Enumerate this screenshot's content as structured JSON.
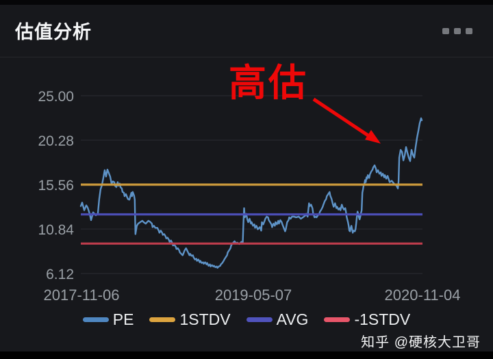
{
  "header": {
    "title": "估值分析"
  },
  "chart_data": {
    "type": "line",
    "title": "估值分析",
    "ylim": [
      6.12,
      25.0
    ],
    "y_ticks": [
      25.0,
      20.28,
      15.56,
      10.84,
      6.12
    ],
    "x_ticks": [
      {
        "label": "2017-11-06",
        "pos": 0.002
      },
      {
        "label": "2019-05-07",
        "pos": 0.505
      },
      {
        "label": "2020-11-04",
        "pos": 1.0
      }
    ],
    "grid": true,
    "legend_position": "bottom",
    "series": [
      {
        "name": "PE",
        "color": "#5e93c7",
        "points": [
          [
            0.0,
            13.28
          ],
          [
            0.004,
            13.66
          ],
          [
            0.01,
            12.84
          ],
          [
            0.016,
            13.36
          ],
          [
            0.02,
            13.13
          ],
          [
            0.026,
            12.46
          ],
          [
            0.03,
            11.79
          ],
          [
            0.036,
            12.61
          ],
          [
            0.044,
            12.31
          ],
          [
            0.05,
            12.46
          ],
          [
            0.054,
            14.03
          ],
          [
            0.058,
            15.07
          ],
          [
            0.062,
            15.52
          ],
          [
            0.066,
            16.27
          ],
          [
            0.07,
            17.09
          ],
          [
            0.074,
            16.42
          ],
          [
            0.078,
            17.16
          ],
          [
            0.082,
            16.79
          ],
          [
            0.086,
            16.42
          ],
          [
            0.09,
            15.67
          ],
          [
            0.094,
            15.9
          ],
          [
            0.098,
            15.82
          ],
          [
            0.1,
            15.45
          ],
          [
            0.104,
            15.3
          ],
          [
            0.108,
            15.82
          ],
          [
            0.11,
            15.45
          ],
          [
            0.114,
            15.67
          ],
          [
            0.116,
            15.3
          ],
          [
            0.12,
            15.15
          ],
          [
            0.122,
            14.78
          ],
          [
            0.126,
            14.7
          ],
          [
            0.128,
            14.33
          ],
          [
            0.132,
            14.55
          ],
          [
            0.136,
            14.18
          ],
          [
            0.138,
            14.03
          ],
          [
            0.142,
            13.96
          ],
          [
            0.144,
            14.18
          ],
          [
            0.148,
            14.7
          ],
          [
            0.15,
            14.33
          ],
          [
            0.152,
            14.78
          ],
          [
            0.156,
            14.4
          ],
          [
            0.158,
            13.96
          ],
          [
            0.16,
            10.3
          ],
          [
            0.164,
            11.19
          ],
          [
            0.168,
            11.42
          ],
          [
            0.174,
            11.57
          ],
          [
            0.18,
            11.72
          ],
          [
            0.184,
            11.57
          ],
          [
            0.19,
            11.42
          ],
          [
            0.194,
            11.57
          ],
          [
            0.198,
            11.72
          ],
          [
            0.204,
            11.57
          ],
          [
            0.208,
            11.42
          ],
          [
            0.21,
            11.04
          ],
          [
            0.214,
            11.19
          ],
          [
            0.218,
            10.97
          ],
          [
            0.224,
            10.97
          ],
          [
            0.228,
            10.67
          ],
          [
            0.23,
            10.45
          ],
          [
            0.234,
            10.67
          ],
          [
            0.238,
            10.45
          ],
          [
            0.24,
            10.22
          ],
          [
            0.244,
            10.3
          ],
          [
            0.248,
            10.07
          ],
          [
            0.25,
            9.85
          ],
          [
            0.254,
            9.93
          ],
          [
            0.258,
            9.7
          ],
          [
            0.26,
            9.48
          ],
          [
            0.264,
            9.63
          ],
          [
            0.268,
            9.33
          ],
          [
            0.27,
            9.1
          ],
          [
            0.274,
            9.18
          ],
          [
            0.278,
            8.96
          ],
          [
            0.28,
            8.73
          ],
          [
            0.284,
            8.81
          ],
          [
            0.288,
            8.58
          ],
          [
            0.29,
            8.36
          ],
          [
            0.294,
            8.21
          ],
          [
            0.298,
            8.06
          ],
          [
            0.3,
            8.21
          ],
          [
            0.304,
            8.58
          ],
          [
            0.308,
            8.81
          ],
          [
            0.31,
            8.66
          ],
          [
            0.314,
            8.36
          ],
          [
            0.318,
            8.06
          ],
          [
            0.32,
            8.21
          ],
          [
            0.324,
            7.99
          ],
          [
            0.328,
            8.06
          ],
          [
            0.33,
            7.84
          ],
          [
            0.334,
            7.61
          ],
          [
            0.338,
            7.69
          ],
          [
            0.34,
            7.46
          ],
          [
            0.344,
            7.61
          ],
          [
            0.348,
            7.31
          ],
          [
            0.35,
            7.46
          ],
          [
            0.354,
            7.24
          ],
          [
            0.358,
            7.31
          ],
          [
            0.36,
            7.16
          ],
          [
            0.364,
            7.31
          ],
          [
            0.368,
            7.09
          ],
          [
            0.37,
            7.24
          ],
          [
            0.374,
            6.94
          ],
          [
            0.378,
            7.09
          ],
          [
            0.38,
            6.87
          ],
          [
            0.384,
            7.01
          ],
          [
            0.388,
            6.87
          ],
          [
            0.39,
            6.94
          ],
          [
            0.394,
            6.79
          ],
          [
            0.398,
            6.87
          ],
          [
            0.4,
            6.72
          ],
          [
            0.404,
            6.87
          ],
          [
            0.408,
            6.94
          ],
          [
            0.41,
            7.09
          ],
          [
            0.414,
            7.24
          ],
          [
            0.418,
            7.46
          ],
          [
            0.42,
            7.61
          ],
          [
            0.424,
            7.84
          ],
          [
            0.428,
            8.06
          ],
          [
            0.43,
            8.36
          ],
          [
            0.434,
            8.58
          ],
          [
            0.438,
            8.81
          ],
          [
            0.44,
            9.1
          ],
          [
            0.444,
            9.33
          ],
          [
            0.45,
            9.55
          ],
          [
            0.454,
            9.33
          ],
          [
            0.458,
            9.4
          ],
          [
            0.464,
            9.25
          ],
          [
            0.47,
            9.48
          ],
          [
            0.474,
            9.33
          ],
          [
            0.476,
            11.42
          ],
          [
            0.478,
            13.06
          ],
          [
            0.48,
            12.09
          ],
          [
            0.484,
            12.46
          ],
          [
            0.488,
            11.79
          ],
          [
            0.49,
            11.57
          ],
          [
            0.494,
            11.94
          ],
          [
            0.498,
            11.42
          ],
          [
            0.5,
            11.57
          ],
          [
            0.504,
            11.19
          ],
          [
            0.508,
            11.34
          ],
          [
            0.51,
            10.97
          ],
          [
            0.514,
            11.19
          ],
          [
            0.518,
            10.82
          ],
          [
            0.524,
            11.04
          ],
          [
            0.528,
            10.67
          ],
          [
            0.53,
            11.57
          ],
          [
            0.534,
            11.34
          ],
          [
            0.538,
            11.72
          ],
          [
            0.54,
            11.94
          ],
          [
            0.544,
            12.16
          ],
          [
            0.548,
            12.09
          ],
          [
            0.55,
            11.79
          ],
          [
            0.554,
            11.57
          ],
          [
            0.558,
            11.34
          ],
          [
            0.56,
            11.04
          ],
          [
            0.564,
            11.42
          ],
          [
            0.568,
            11.19
          ],
          [
            0.57,
            11.57
          ],
          [
            0.574,
            11.34
          ],
          [
            0.578,
            11.72
          ],
          [
            0.58,
            11.42
          ],
          [
            0.584,
            11.79
          ],
          [
            0.588,
            11.57
          ],
          [
            0.59,
            11.34
          ],
          [
            0.594,
            10.97
          ],
          [
            0.598,
            10.6
          ],
          [
            0.6,
            10.82
          ],
          [
            0.604,
            11.57
          ],
          [
            0.608,
            11.79
          ],
          [
            0.61,
            12.09
          ],
          [
            0.614,
            11.94
          ],
          [
            0.618,
            12.16
          ],
          [
            0.624,
            12.16
          ],
          [
            0.63,
            12.09
          ],
          [
            0.638,
            12.16
          ],
          [
            0.644,
            11.94
          ],
          [
            0.65,
            12.09
          ],
          [
            0.658,
            12.31
          ],
          [
            0.66,
            12.46
          ],
          [
            0.664,
            12.16
          ],
          [
            0.668,
            13.58
          ],
          [
            0.67,
            13.28
          ],
          [
            0.674,
            13.43
          ],
          [
            0.678,
            13.06
          ],
          [
            0.68,
            12.54
          ],
          [
            0.684,
            12.09
          ],
          [
            0.688,
            12.16
          ],
          [
            0.69,
            12.09
          ],
          [
            0.694,
            12.31
          ],
          [
            0.698,
            12.46
          ],
          [
            0.7,
            12.69
          ],
          [
            0.704,
            12.91
          ],
          [
            0.708,
            13.21
          ],
          [
            0.71,
            13.43
          ],
          [
            0.714,
            13.81
          ],
          [
            0.718,
            14.03
          ],
          [
            0.72,
            14.33
          ],
          [
            0.724,
            14.55
          ],
          [
            0.728,
            14.78
          ],
          [
            0.73,
            14.4
          ],
          [
            0.734,
            14.03
          ],
          [
            0.738,
            13.43
          ],
          [
            0.74,
            13.21
          ],
          [
            0.744,
            13.58
          ],
          [
            0.748,
            13.06
          ],
          [
            0.75,
            13.21
          ],
          [
            0.754,
            12.91
          ],
          [
            0.758,
            13.06
          ],
          [
            0.76,
            12.84
          ],
          [
            0.764,
            13.43
          ],
          [
            0.766,
            13.21
          ],
          [
            0.77,
            12.91
          ],
          [
            0.774,
            13.06
          ],
          [
            0.776,
            12.69
          ],
          [
            0.778,
            12.16
          ],
          [
            0.782,
            11.57
          ],
          [
            0.784,
            11.19
          ],
          [
            0.786,
            10.67
          ],
          [
            0.788,
            10.6
          ],
          [
            0.79,
            10.97
          ],
          [
            0.792,
            11.19
          ],
          [
            0.794,
            10.82
          ],
          [
            0.796,
            10.45
          ],
          [
            0.798,
            10.67
          ],
          [
            0.802,
            10.6
          ],
          [
            0.804,
            10.82
          ],
          [
            0.806,
            11.42
          ],
          [
            0.808,
            12.16
          ],
          [
            0.81,
            12.69
          ],
          [
            0.812,
            12.46
          ],
          [
            0.814,
            12.09
          ],
          [
            0.816,
            11.87
          ],
          [
            0.818,
            12.16
          ],
          [
            0.82,
            12.54
          ],
          [
            0.822,
            12.84
          ],
          [
            0.824,
            14.7
          ],
          [
            0.826,
            15.07
          ],
          [
            0.828,
            15.52
          ],
          [
            0.83,
            15.67
          ],
          [
            0.832,
            16.04
          ],
          [
            0.834,
            15.82
          ],
          [
            0.836,
            16.34
          ],
          [
            0.838,
            16.19
          ],
          [
            0.84,
            16.57
          ],
          [
            0.844,
            16.27
          ],
          [
            0.846,
            16.64
          ],
          [
            0.85,
            16.94
          ],
          [
            0.854,
            17.16
          ],
          [
            0.856,
            17.39
          ],
          [
            0.86,
            17.61
          ],
          [
            0.864,
            17.24
          ],
          [
            0.866,
            16.87
          ],
          [
            0.87,
            17.09
          ],
          [
            0.874,
            16.72
          ],
          [
            0.878,
            16.87
          ],
          [
            0.88,
            16.49
          ],
          [
            0.884,
            16.72
          ],
          [
            0.888,
            16.34
          ],
          [
            0.89,
            16.57
          ],
          [
            0.894,
            16.19
          ],
          [
            0.898,
            16.49
          ],
          [
            0.904,
            15.82
          ],
          [
            0.91,
            15.97
          ],
          [
            0.918,
            15.6
          ],
          [
            0.924,
            15.45
          ],
          [
            0.928,
            15.15
          ],
          [
            0.93,
            15.9
          ],
          [
            0.932,
            18.43
          ],
          [
            0.936,
            19.25
          ],
          [
            0.94,
            19.03
          ],
          [
            0.944,
            18.13
          ],
          [
            0.948,
            18.66
          ],
          [
            0.952,
            19.55
          ],
          [
            0.956,
            18.96
          ],
          [
            0.96,
            18.43
          ],
          [
            0.964,
            18.06
          ],
          [
            0.968,
            19.25
          ],
          [
            0.972,
            18.73
          ],
          [
            0.976,
            18.43
          ],
          [
            0.98,
            19.55
          ],
          [
            0.984,
            20.52
          ],
          [
            0.988,
            21.27
          ],
          [
            0.992,
            22.09
          ],
          [
            0.996,
            22.61
          ],
          [
            0.998,
            22.39
          ]
        ]
      }
    ],
    "reference_lines": [
      {
        "name": "1STDV",
        "value": 15.56,
        "color": "#cf9c3c"
      },
      {
        "name": "AVG",
        "value": 12.4,
        "color": "#4b4eb6"
      },
      {
        "name": "-1STDV",
        "value": 9.3,
        "color": "#bf3c4c"
      }
    ],
    "annotation": {
      "text": "高估",
      "color": "#ee0808"
    }
  },
  "legend": {
    "items": [
      {
        "label": "PE",
        "color": "#4f87c1"
      },
      {
        "label": "1STDV",
        "color": "#dda43f"
      },
      {
        "label": "AVG",
        "color": "#5053bd"
      },
      {
        "label": "-1STDV",
        "color": "#e8566a"
      }
    ]
  },
  "watermark": "知乎 @硬核大卫哥"
}
